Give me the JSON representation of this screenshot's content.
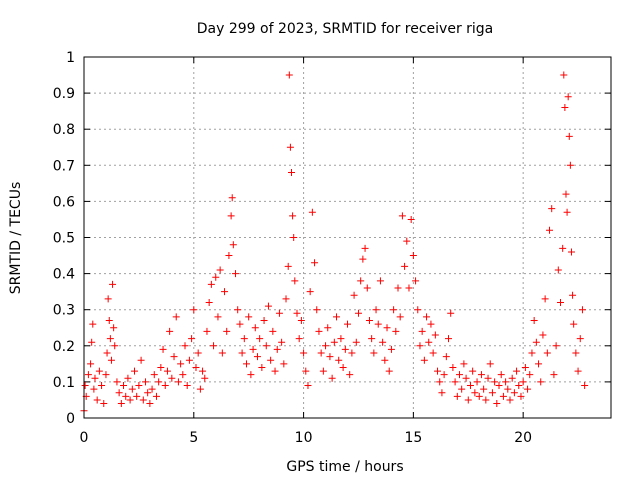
{
  "chart_data": {
    "type": "scatter",
    "title": "Day 299 of 2023, SRMTID for receiver riga",
    "xlabel": "GPS time / hours",
    "ylabel": "SRMTID / TECUs",
    "xlim": [
      0,
      24
    ],
    "ylim": [
      0,
      1
    ],
    "x_ticks": [
      0,
      5,
      10,
      15,
      20
    ],
    "x_tick_labels": [
      "0",
      "5",
      "10",
      "15",
      "20"
    ],
    "y_ticks": [
      0,
      0.1,
      0.2,
      0.3,
      0.4,
      0.5,
      0.6,
      0.7,
      0.8,
      0.9,
      1
    ],
    "y_tick_labels": [
      "0",
      "0.1",
      "0.2",
      "0.3",
      "0.4",
      "0.5",
      "0.6",
      "0.7",
      "0.8",
      "0.9",
      "1"
    ],
    "grid": true,
    "marker": "+",
    "color": "#ff0000",
    "series": [
      {
        "name": "SRMTID",
        "points": [
          [
            0.0,
            0.02
          ],
          [
            0.05,
            0.09
          ],
          [
            0.1,
            0.06
          ],
          [
            0.2,
            0.12
          ],
          [
            0.3,
            0.15
          ],
          [
            0.35,
            0.21
          ],
          [
            0.4,
            0.26
          ],
          [
            0.45,
            0.08
          ],
          [
            0.5,
            0.11
          ],
          [
            0.6,
            0.05
          ],
          [
            0.7,
            0.13
          ],
          [
            0.8,
            0.09
          ],
          [
            0.9,
            0.04
          ],
          [
            1.0,
            0.12
          ],
          [
            1.05,
            0.18
          ],
          [
            1.1,
            0.33
          ],
          [
            1.15,
            0.27
          ],
          [
            1.2,
            0.22
          ],
          [
            1.25,
            0.16
          ],
          [
            1.3,
            0.37
          ],
          [
            1.35,
            0.25
          ],
          [
            1.4,
            0.2
          ],
          [
            1.5,
            0.1
          ],
          [
            1.6,
            0.07
          ],
          [
            1.7,
            0.04
          ],
          [
            1.8,
            0.09
          ],
          [
            1.9,
            0.06
          ],
          [
            2.0,
            0.11
          ],
          [
            2.1,
            0.05
          ],
          [
            2.2,
            0.08
          ],
          [
            2.3,
            0.13
          ],
          [
            2.4,
            0.06
          ],
          [
            2.5,
            0.09
          ],
          [
            2.6,
            0.16
          ],
          [
            2.7,
            0.05
          ],
          [
            2.8,
            0.1
          ],
          [
            2.9,
            0.07
          ],
          [
            3.0,
            0.04
          ],
          [
            3.1,
            0.08
          ],
          [
            3.2,
            0.12
          ],
          [
            3.3,
            0.06
          ],
          [
            3.4,
            0.1
          ],
          [
            3.5,
            0.14
          ],
          [
            3.6,
            0.19
          ],
          [
            3.7,
            0.09
          ],
          [
            3.8,
            0.13
          ],
          [
            3.9,
            0.24
          ],
          [
            4.0,
            0.11
          ],
          [
            4.1,
            0.17
          ],
          [
            4.2,
            0.28
          ],
          [
            4.3,
            0.1
          ],
          [
            4.4,
            0.15
          ],
          [
            4.5,
            0.12
          ],
          [
            4.6,
            0.2
          ],
          [
            4.7,
            0.09
          ],
          [
            4.8,
            0.16
          ],
          [
            4.9,
            0.22
          ],
          [
            5.0,
            0.3
          ],
          [
            5.1,
            0.14
          ],
          [
            5.2,
            0.18
          ],
          [
            5.3,
            0.08
          ],
          [
            5.4,
            0.13
          ],
          [
            5.5,
            0.11
          ],
          [
            5.6,
            0.24
          ],
          [
            5.7,
            0.32
          ],
          [
            5.8,
            0.37
          ],
          [
            5.9,
            0.2
          ],
          [
            6.0,
            0.39
          ],
          [
            6.1,
            0.28
          ],
          [
            6.2,
            0.41
          ],
          [
            6.3,
            0.18
          ],
          [
            6.4,
            0.35
          ],
          [
            6.5,
            0.24
          ],
          [
            6.6,
            0.45
          ],
          [
            6.7,
            0.56
          ],
          [
            6.75,
            0.61
          ],
          [
            6.8,
            0.48
          ],
          [
            6.9,
            0.4
          ],
          [
            7.0,
            0.3
          ],
          [
            7.1,
            0.26
          ],
          [
            7.2,
            0.18
          ],
          [
            7.3,
            0.22
          ],
          [
            7.4,
            0.15
          ],
          [
            7.5,
            0.28
          ],
          [
            7.6,
            0.12
          ],
          [
            7.7,
            0.19
          ],
          [
            7.8,
            0.25
          ],
          [
            7.9,
            0.17
          ],
          [
            8.0,
            0.22
          ],
          [
            8.1,
            0.14
          ],
          [
            8.2,
            0.27
          ],
          [
            8.3,
            0.2
          ],
          [
            8.4,
            0.31
          ],
          [
            8.5,
            0.16
          ],
          [
            8.6,
            0.24
          ],
          [
            8.7,
            0.13
          ],
          [
            8.8,
            0.19
          ],
          [
            8.9,
            0.29
          ],
          [
            9.0,
            0.21
          ],
          [
            9.1,
            0.15
          ],
          [
            9.2,
            0.33
          ],
          [
            9.3,
            0.42
          ],
          [
            9.35,
            0.95
          ],
          [
            9.4,
            0.75
          ],
          [
            9.45,
            0.68
          ],
          [
            9.5,
            0.56
          ],
          [
            9.55,
            0.5
          ],
          [
            9.6,
            0.38
          ],
          [
            9.7,
            0.29
          ],
          [
            9.8,
            0.22
          ],
          [
            9.9,
            0.27
          ],
          [
            10.0,
            0.18
          ],
          [
            10.1,
            0.13
          ],
          [
            10.2,
            0.09
          ],
          [
            10.3,
            0.35
          ],
          [
            10.4,
            0.57
          ],
          [
            10.5,
            0.43
          ],
          [
            10.6,
            0.3
          ],
          [
            10.7,
            0.24
          ],
          [
            10.8,
            0.18
          ],
          [
            10.9,
            0.13
          ],
          [
            11.0,
            0.2
          ],
          [
            11.1,
            0.25
          ],
          [
            11.2,
            0.17
          ],
          [
            11.3,
            0.11
          ],
          [
            11.4,
            0.21
          ],
          [
            11.5,
            0.28
          ],
          [
            11.6,
            0.16
          ],
          [
            11.7,
            0.22
          ],
          [
            11.8,
            0.14
          ],
          [
            11.9,
            0.19
          ],
          [
            12.0,
            0.26
          ],
          [
            12.1,
            0.12
          ],
          [
            12.2,
            0.18
          ],
          [
            12.3,
            0.34
          ],
          [
            12.4,
            0.21
          ],
          [
            12.5,
            0.29
          ],
          [
            12.6,
            0.38
          ],
          [
            12.7,
            0.44
          ],
          [
            12.8,
            0.47
          ],
          [
            12.9,
            0.36
          ],
          [
            13.0,
            0.27
          ],
          [
            13.1,
            0.22
          ],
          [
            13.2,
            0.18
          ],
          [
            13.3,
            0.3
          ],
          [
            13.4,
            0.26
          ],
          [
            13.5,
            0.38
          ],
          [
            13.6,
            0.21
          ],
          [
            13.7,
            0.16
          ],
          [
            13.8,
            0.25
          ],
          [
            13.9,
            0.13
          ],
          [
            14.0,
            0.19
          ],
          [
            14.1,
            0.3
          ],
          [
            14.2,
            0.24
          ],
          [
            14.3,
            0.36
          ],
          [
            14.4,
            0.28
          ],
          [
            14.5,
            0.56
          ],
          [
            14.6,
            0.42
          ],
          [
            14.7,
            0.49
          ],
          [
            14.8,
            0.36
          ],
          [
            14.9,
            0.55
          ],
          [
            15.0,
            0.45
          ],
          [
            15.1,
            0.38
          ],
          [
            15.2,
            0.3
          ],
          [
            15.3,
            0.2
          ],
          [
            15.4,
            0.24
          ],
          [
            15.5,
            0.16
          ],
          [
            15.6,
            0.28
          ],
          [
            15.7,
            0.21
          ],
          [
            15.8,
            0.26
          ],
          [
            15.9,
            0.18
          ],
          [
            16.0,
            0.23
          ],
          [
            16.1,
            0.13
          ],
          [
            16.2,
            0.1
          ],
          [
            16.3,
            0.07
          ],
          [
            16.4,
            0.12
          ],
          [
            16.5,
            0.17
          ],
          [
            16.6,
            0.22
          ],
          [
            16.7,
            0.29
          ],
          [
            16.8,
            0.14
          ],
          [
            16.9,
            0.1
          ],
          [
            17.0,
            0.06
          ],
          [
            17.1,
            0.12
          ],
          [
            17.2,
            0.08
          ],
          [
            17.3,
            0.15
          ],
          [
            17.4,
            0.11
          ],
          [
            17.5,
            0.05
          ],
          [
            17.6,
            0.09
          ],
          [
            17.7,
            0.13
          ],
          [
            17.8,
            0.07
          ],
          [
            17.9,
            0.1
          ],
          [
            18.0,
            0.06
          ],
          [
            18.1,
            0.12
          ],
          [
            18.2,
            0.08
          ],
          [
            18.3,
            0.05
          ],
          [
            18.4,
            0.11
          ],
          [
            18.5,
            0.15
          ],
          [
            18.6,
            0.07
          ],
          [
            18.7,
            0.1
          ],
          [
            18.8,
            0.04
          ],
          [
            18.9,
            0.09
          ],
          [
            19.0,
            0.12
          ],
          [
            19.1,
            0.06
          ],
          [
            19.2,
            0.1
          ],
          [
            19.3,
            0.08
          ],
          [
            19.4,
            0.05
          ],
          [
            19.5,
            0.11
          ],
          [
            19.6,
            0.07
          ],
          [
            19.7,
            0.13
          ],
          [
            19.8,
            0.09
          ],
          [
            19.9,
            0.06
          ],
          [
            20.0,
            0.1
          ],
          [
            20.1,
            0.14
          ],
          [
            20.2,
            0.08
          ],
          [
            20.3,
            0.12
          ],
          [
            20.4,
            0.18
          ],
          [
            20.5,
            0.27
          ],
          [
            20.6,
            0.21
          ],
          [
            20.7,
            0.15
          ],
          [
            20.8,
            0.1
          ],
          [
            20.9,
            0.23
          ],
          [
            21.0,
            0.33
          ],
          [
            21.1,
            0.18
          ],
          [
            21.2,
            0.52
          ],
          [
            21.3,
            0.58
          ],
          [
            21.4,
            0.12
          ],
          [
            21.5,
            0.2
          ],
          [
            21.6,
            0.41
          ],
          [
            21.7,
            0.32
          ],
          [
            21.8,
            0.47
          ],
          [
            21.85,
            0.95
          ],
          [
            21.9,
            0.86
          ],
          [
            21.95,
            0.62
          ],
          [
            22.0,
            0.57
          ],
          [
            22.05,
            0.89
          ],
          [
            22.1,
            0.78
          ],
          [
            22.15,
            0.7
          ],
          [
            22.2,
            0.46
          ],
          [
            22.25,
            0.34
          ],
          [
            22.3,
            0.26
          ],
          [
            22.4,
            0.18
          ],
          [
            22.5,
            0.13
          ],
          [
            22.6,
            0.22
          ],
          [
            22.7,
            0.3
          ],
          [
            22.8,
            0.09
          ]
        ]
      }
    ]
  }
}
